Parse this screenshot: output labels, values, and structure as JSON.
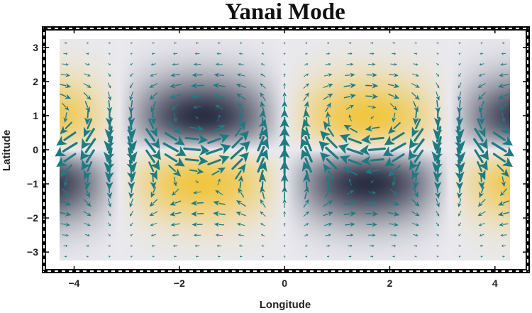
{
  "chart_data": {
    "type": "density-vector-field",
    "title": "Yanai Mode",
    "xlabel": "Longitude",
    "ylabel": "Latitude",
    "xlim": [
      -4.6,
      4.65
    ],
    "ylim": [
      -3.6,
      3.6
    ],
    "x_ticks": [
      -4,
      -2,
      0,
      2,
      4
    ],
    "y_ticks": [
      -3,
      -2,
      -1,
      0,
      1,
      2,
      3
    ],
    "tick_labels_x": [
      "−4",
      "−2",
      "0",
      "2",
      "4"
    ],
    "tick_labels_y": [
      "−3",
      "−2",
      "−1",
      "0",
      "1",
      "2",
      "3"
    ],
    "data_domain": {
      "x": [
        -4.28,
        4.28
      ],
      "y": [
        -3.25,
        3.25
      ]
    },
    "density_field": "h = sin(x) * y * exp(-y^2/2)",
    "density_color_low": "#2a2f45",
    "density_color_mid": "#e9e9ee",
    "density_color_high": "#f1c641",
    "vector_field": {
      "u": "sin(x) * (y^2 - 1) * exp(-y^2/2)",
      "v": "cos(x) * exp(-y^2/2)",
      "color": "#1e7b82",
      "grid_columns": 21,
      "grid_rows": 21
    },
    "frame_style": "checkered"
  }
}
